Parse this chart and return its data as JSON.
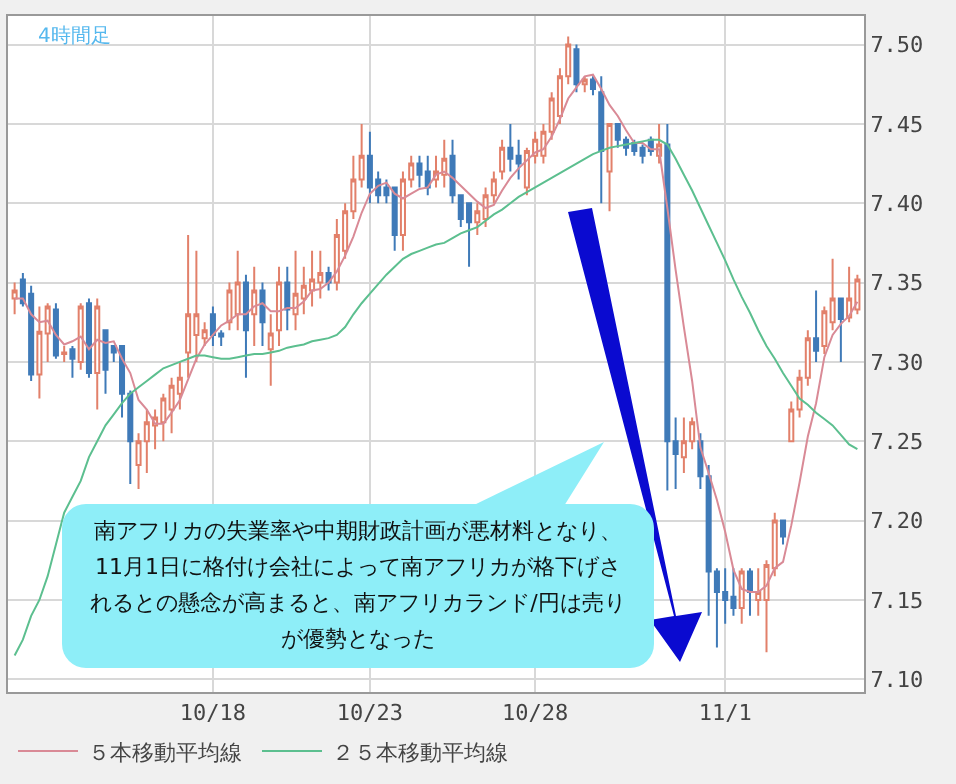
{
  "chart_data": {
    "type": "candlestick",
    "categories": [
      null,
      null,
      null,
      null,
      null,
      null,
      null,
      null,
      null,
      null,
      null,
      null,
      null,
      null,
      null,
      null,
      null,
      null,
      null,
      null,
      null,
      null,
      null,
      null,
      "10/18",
      null,
      null,
      null,
      null,
      null,
      null,
      null,
      null,
      null,
      null,
      null,
      null,
      null,
      null,
      null,
      null,
      null,
      null,
      "10/23",
      null,
      null,
      null,
      null,
      null,
      null,
      null,
      null,
      null,
      null,
      null,
      null,
      null,
      null,
      null,
      null,
      null,
      null,
      null,
      "10/28",
      null,
      null,
      null,
      null,
      null,
      null,
      null,
      null,
      null,
      null,
      null,
      null,
      null,
      null,
      null,
      null,
      null,
      null,
      null,
      null,
      null,
      null,
      "11/1",
      null,
      null,
      null,
      null,
      null,
      null,
      null,
      null,
      null,
      null,
      null,
      null,
      null,
      null,
      null,
      null
    ],
    "ohlc": [
      [
        7.34,
        7.35,
        7.33,
        7.345
      ],
      [
        7.352,
        7.356,
        7.335,
        7.337
      ],
      [
        7.343,
        7.348,
        7.288,
        7.292
      ],
      [
        7.292,
        7.335,
        7.277,
        7.319
      ],
      [
        7.318,
        7.337,
        7.3,
        7.335
      ],
      [
        7.333,
        7.337,
        7.302,
        7.304
      ],
      [
        7.305,
        7.31,
        7.3,
        7.306
      ],
      [
        7.308,
        7.31,
        7.29,
        7.302
      ],
      [
        7.3,
        7.337,
        7.295,
        7.335
      ],
      [
        7.337,
        7.34,
        7.29,
        7.293
      ],
      [
        7.293,
        7.34,
        7.27,
        7.335
      ],
      [
        7.32,
        7.32,
        7.28,
        7.295
      ],
      [
        7.31,
        7.31,
        7.3,
        7.306
      ],
      [
        7.31,
        7.31,
        7.265,
        7.28
      ],
      [
        7.28,
        7.282,
        7.223,
        7.25
      ],
      [
        7.235,
        7.255,
        7.22,
        7.25
      ],
      [
        7.25,
        7.27,
        7.23,
        7.262
      ],
      [
        7.26,
        7.27,
        7.245,
        7.265
      ],
      [
        7.262,
        7.28,
        7.25,
        7.277
      ],
      [
        7.27,
        7.29,
        7.255,
        7.285
      ],
      [
        7.28,
        7.3,
        7.27,
        7.29
      ],
      [
        7.306,
        7.38,
        7.29,
        7.33
      ],
      [
        7.317,
        7.37,
        7.3,
        7.33
      ],
      [
        7.315,
        7.325,
        7.31,
        7.32
      ],
      [
        7.33,
        7.335,
        7.31,
        7.317
      ],
      [
        7.318,
        7.32,
        7.31,
        7.316
      ],
      [
        7.325,
        7.35,
        7.32,
        7.345
      ],
      [
        7.33,
        7.37,
        7.32,
        7.35
      ],
      [
        7.35,
        7.355,
        7.29,
        7.32
      ],
      [
        7.33,
        7.36,
        7.31,
        7.345
      ],
      [
        7.345,
        7.35,
        7.31,
        7.325
      ],
      [
        7.308,
        7.33,
        7.285,
        7.318
      ],
      [
        7.32,
        7.36,
        7.31,
        7.35
      ],
      [
        7.35,
        7.36,
        7.32,
        7.333
      ],
      [
        7.33,
        7.37,
        7.32,
        7.343
      ],
      [
        7.34,
        7.36,
        7.33,
        7.348
      ],
      [
        7.345,
        7.37,
        7.335,
        7.352
      ],
      [
        7.35,
        7.37,
        7.34,
        7.356
      ],
      [
        7.356,
        7.36,
        7.345,
        7.35
      ],
      [
        7.35,
        7.39,
        7.345,
        7.38
      ],
      [
        7.37,
        7.4,
        7.365,
        7.395
      ],
      [
        7.395,
        7.43,
        7.39,
        7.415
      ],
      [
        7.415,
        7.45,
        7.41,
        7.43
      ],
      [
        7.43,
        7.445,
        7.4,
        7.41
      ],
      [
        7.415,
        7.42,
        7.4,
        7.405
      ],
      [
        7.41,
        7.415,
        7.4,
        7.405
      ],
      [
        7.41,
        7.41,
        7.37,
        7.38
      ],
      [
        7.38,
        7.42,
        7.37,
        7.415
      ],
      [
        7.415,
        7.43,
        7.41,
        7.425
      ],
      [
        7.425,
        7.43,
        7.41,
        7.418
      ],
      [
        7.42,
        7.43,
        7.405,
        7.41
      ],
      [
        7.415,
        7.43,
        7.41,
        7.42
      ],
      [
        7.418,
        7.44,
        7.41,
        7.428
      ],
      [
        7.43,
        7.44,
        7.4,
        7.405
      ],
      [
        7.405,
        7.405,
        7.385,
        7.39
      ],
      [
        7.4,
        7.4,
        7.36,
        7.388
      ],
      [
        7.388,
        7.4,
        7.38,
        7.395
      ],
      [
        7.39,
        7.41,
        7.385,
        7.405
      ],
      [
        7.405,
        7.42,
        7.4,
        7.415
      ],
      [
        7.42,
        7.44,
        7.415,
        7.435
      ],
      [
        7.435,
        7.45,
        7.42,
        7.428
      ],
      [
        7.43,
        7.44,
        7.415,
        7.425
      ],
      [
        7.41,
        7.435,
        7.405,
        7.433
      ],
      [
        7.43,
        7.445,
        7.425,
        7.44
      ],
      [
        7.43,
        7.45,
        7.425,
        7.445
      ],
      [
        7.445,
        7.47,
        7.44,
        7.466
      ],
      [
        7.455,
        7.485,
        7.45,
        7.48
      ],
      [
        7.48,
        7.505,
        7.475,
        7.5
      ],
      [
        7.497,
        7.5,
        7.47,
        7.475
      ],
      [
        7.475,
        7.48,
        7.47,
        7.478
      ],
      [
        7.478,
        7.48,
        7.468,
        7.472
      ],
      [
        7.47,
        7.48,
        7.4,
        7.433
      ],
      [
        7.42,
        7.45,
        7.395,
        7.45
      ],
      [
        7.45,
        7.45,
        7.435,
        7.44
      ],
      [
        7.44,
        7.442,
        7.43,
        7.435
      ],
      [
        7.438,
        7.44,
        7.43,
        7.433
      ],
      [
        7.435,
        7.437,
        7.425,
        7.43
      ],
      [
        7.44,
        7.442,
        7.43,
        7.433
      ],
      [
        7.43,
        7.45,
        7.425,
        7.437
      ],
      [
        7.437,
        7.45,
        7.219,
        7.25
      ],
      [
        7.25,
        7.265,
        7.22,
        7.242
      ],
      [
        7.24,
        7.265,
        7.23,
        7.25
      ],
      [
        7.25,
        7.265,
        7.245,
        7.262
      ],
      [
        7.25,
        7.255,
        7.22,
        7.228
      ],
      [
        7.228,
        7.235,
        7.14,
        7.168
      ],
      [
        7.168,
        7.17,
        7.12,
        7.155
      ],
      [
        7.155,
        7.17,
        7.135,
        7.15
      ],
      [
        7.152,
        7.17,
        7.14,
        7.145
      ],
      [
        7.145,
        7.17,
        7.135,
        7.168
      ],
      [
        7.168,
        7.17,
        7.14,
        7.155
      ],
      [
        7.15,
        7.17,
        7.14,
        7.155
      ],
      [
        7.15,
        7.175,
        7.117,
        7.172
      ],
      [
        7.17,
        7.205,
        7.165,
        7.2
      ],
      [
        7.2,
        7.2,
        7.185,
        7.19
      ],
      [
        7.25,
        7.275,
        7.25,
        7.27
      ],
      [
        7.27,
        7.295,
        7.265,
        7.29
      ],
      [
        7.29,
        7.32,
        7.285,
        7.315
      ],
      [
        7.315,
        7.345,
        7.3,
        7.307
      ],
      [
        7.31,
        7.335,
        7.305,
        7.332
      ],
      [
        7.325,
        7.365,
        7.32,
        7.34
      ],
      [
        7.34,
        7.34,
        7.3,
        7.327
      ],
      [
        7.328,
        7.36,
        7.325,
        7.34
      ],
      [
        7.333,
        7.355,
        7.33,
        7.352
      ]
    ],
    "colors": [
      "#e2806a",
      "#3f7ab8",
      "#3f7ab8",
      "#e2806a",
      "#e2806a",
      "#3f7ab8",
      "#e2806a",
      "#3f7ab8",
      "#e2806a",
      "#3f7ab8",
      "#e2806a",
      "#3f7ab8",
      "#3f7ab8",
      "#3f7ab8",
      "#3f7ab8",
      "#e2806a",
      "#e2806a",
      "#e2806a",
      "#e2806a",
      "#e2806a",
      "#e2806a",
      "#e2806a",
      "#e2806a",
      "#e2806a",
      "#3f7ab8",
      "#3f7ab8",
      "#e2806a",
      "#e2806a",
      "#3f7ab8",
      "#e2806a",
      "#3f7ab8",
      "#e2806a",
      "#e2806a",
      "#3f7ab8",
      "#e2806a",
      "#e2806a",
      "#e2806a",
      "#e2806a",
      "#3f7ab8",
      "#e2806a",
      "#e2806a",
      "#e2806a",
      "#e2806a",
      "#3f7ab8",
      "#3f7ab8",
      "#3f7ab8",
      "#3f7ab8",
      "#e2806a",
      "#e2806a",
      "#3f7ab8",
      "#3f7ab8",
      "#e2806a",
      "#e2806a",
      "#3f7ab8",
      "#3f7ab8",
      "#3f7ab8",
      "#e2806a",
      "#e2806a",
      "#e2806a",
      "#e2806a",
      "#3f7ab8",
      "#3f7ab8",
      "#e2806a",
      "#e2806a",
      "#e2806a",
      "#e2806a",
      "#e2806a",
      "#e2806a",
      "#3f7ab8",
      "#e2806a",
      "#3f7ab8",
      "#3f7ab8",
      "#e2806a",
      "#3f7ab8",
      "#3f7ab8",
      "#3f7ab8",
      "#3f7ab8",
      "#3f7ab8",
      "#e2806a",
      "#3f7ab8",
      "#3f7ab8",
      "#e2806a",
      "#e2806a",
      "#3f7ab8",
      "#3f7ab8",
      "#3f7ab8",
      "#3f7ab8",
      "#3f7ab8",
      "#e2806a",
      "#3f7ab8",
      "#e2806a",
      "#e2806a",
      "#e2806a",
      "#3f7ab8",
      "#e2806a",
      "#e2806a",
      "#e2806a",
      "#3f7ab8",
      "#e2806a",
      "#e2806a",
      "#3f7ab8",
      "#e2806a",
      "#e2806a"
    ],
    "series": [
      {
        "type": "line",
        "name": "５本移動平均線",
        "color": "#d98a96",
        "values": [
          7.34,
          7.34,
          7.33,
          7.325,
          7.326,
          7.317,
          7.311,
          7.313,
          7.316,
          7.308,
          7.314,
          7.312,
          7.313,
          7.302,
          7.293,
          7.276,
          7.27,
          7.261,
          7.261,
          7.268,
          7.276,
          7.289,
          7.302,
          7.311,
          7.317,
          7.323,
          7.326,
          7.33,
          7.33,
          7.335,
          7.337,
          7.332,
          7.332,
          7.334,
          7.334,
          7.338,
          7.345,
          7.346,
          7.35,
          7.357,
          7.367,
          7.379,
          7.394,
          7.406,
          7.411,
          7.413,
          7.406,
          7.403,
          7.406,
          7.409,
          7.41,
          7.418,
          7.42,
          7.416,
          7.411,
          7.406,
          7.401,
          7.397,
          7.399,
          7.408,
          7.416,
          7.422,
          7.427,
          7.432,
          7.434,
          7.442,
          7.453,
          7.466,
          7.473,
          7.48,
          7.481,
          7.472,
          7.462,
          7.455,
          7.446,
          7.438,
          7.438,
          7.434,
          7.434,
          7.397,
          7.358,
          7.322,
          7.288,
          7.246,
          7.23,
          7.213,
          7.193,
          7.169,
          7.157,
          7.155,
          7.155,
          7.159,
          7.17,
          7.174,
          7.197,
          7.224,
          7.253,
          7.274,
          7.303,
          7.317,
          7.324,
          7.329,
          7.338
        ]
      },
      {
        "type": "line",
        "name": "２５本移動平均線",
        "color": "#5cbf8f",
        "values": [
          7.115,
          7.125,
          7.14,
          7.15,
          7.165,
          7.185,
          7.205,
          7.215,
          7.225,
          7.24,
          7.25,
          7.26,
          7.267,
          7.274,
          7.28,
          7.284,
          7.288,
          7.292,
          7.296,
          7.298,
          7.3,
          7.302,
          7.304,
          7.304,
          7.303,
          7.302,
          7.302,
          7.303,
          7.304,
          7.305,
          7.305,
          7.306,
          7.307,
          7.309,
          7.31,
          7.311,
          7.313,
          7.314,
          7.315,
          7.317,
          7.322,
          7.33,
          7.337,
          7.343,
          7.349,
          7.355,
          7.36,
          7.365,
          7.368,
          7.37,
          7.372,
          7.374,
          7.375,
          7.378,
          7.381,
          7.383,
          7.385,
          7.389,
          7.393,
          7.396,
          7.4,
          7.404,
          7.407,
          7.41,
          7.413,
          7.416,
          7.419,
          7.422,
          7.425,
          7.428,
          7.431,
          7.433,
          7.435,
          7.436,
          7.437,
          7.438,
          7.439,
          7.44,
          7.44,
          7.437,
          7.428,
          7.418,
          7.408,
          7.397,
          7.386,
          7.375,
          7.364,
          7.352,
          7.341,
          7.331,
          7.32,
          7.31,
          7.302,
          7.293,
          7.285,
          7.277,
          7.273,
          7.268,
          7.264,
          7.26,
          7.254,
          7.248,
          7.245
        ]
      }
    ],
    "ylim": [
      7.092,
      7.518
    ],
    "yticks": [
      {
        "value": 7.1,
        "label": "7.10"
      },
      {
        "value": 7.15,
        "label": "7.15"
      },
      {
        "value": 7.2,
        "label": "7.20"
      },
      {
        "value": 7.25,
        "label": "7.25"
      },
      {
        "value": 7.3,
        "label": "7.30"
      },
      {
        "value": 7.35,
        "label": "7.35"
      },
      {
        "value": 7.4,
        "label": "7.40"
      },
      {
        "value": 7.45,
        "label": "7.45"
      },
      {
        "value": 7.5,
        "label": "7.50"
      }
    ],
    "grid": true,
    "legend": "bottom left",
    "annotations": [
      "4時間足",
      "南アフリカの失業率や中期財政計画が悪材料となり、11月1日に格付け会社によって南アフリカが格下げされるとの懸念が高まると、南アフリカランド/円は売りが優勢となった"
    ]
  }
}
